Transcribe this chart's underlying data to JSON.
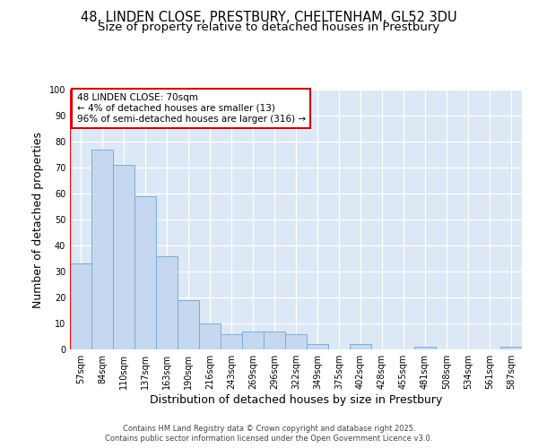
{
  "title_line1": "48, LINDEN CLOSE, PRESTBURY, CHELTENHAM, GL52 3DU",
  "title_line2": "Size of property relative to detached houses in Prestbury",
  "xlabel": "Distribution of detached houses by size in Prestbury",
  "ylabel": "Number of detached properties",
  "bar_labels": [
    "57sqm",
    "84sqm",
    "110sqm",
    "137sqm",
    "163sqm",
    "190sqm",
    "216sqm",
    "243sqm",
    "269sqm",
    "296sqm",
    "322sqm",
    "349sqm",
    "375sqm",
    "402sqm",
    "428sqm",
    "455sqm",
    "481sqm",
    "508sqm",
    "534sqm",
    "561sqm",
    "587sqm"
  ],
  "bar_values": [
    33,
    77,
    71,
    59,
    36,
    19,
    10,
    6,
    7,
    7,
    6,
    2,
    0,
    2,
    0,
    0,
    1,
    0,
    0,
    0,
    1
  ],
  "bar_color": "#c5d8f0",
  "bar_edge_color": "#7aafd4",
  "bar_edge_width": 0.7,
  "background_color": "#dce8f5",
  "grid_color": "#ffffff",
  "annotation_text": "48 LINDEN CLOSE: 70sqm\n← 4% of detached houses are smaller (13)\n96% of semi-detached houses are larger (316) →",
  "annotation_box_color": "#ffffff",
  "annotation_box_edge_color": "#cc0000",
  "ylim": [
    0,
    100
  ],
  "yticks": [
    0,
    10,
    20,
    30,
    40,
    50,
    60,
    70,
    80,
    90,
    100
  ],
  "footer_line1": "Contains HM Land Registry data © Crown copyright and database right 2025.",
  "footer_line2": "Contains public sector information licensed under the Open Government Licence v3.0.",
  "title_fontsize": 10.5,
  "subtitle_fontsize": 9.5,
  "xlabel_fontsize": 9,
  "ylabel_fontsize": 9,
  "tick_fontsize": 7,
  "annotation_fontsize": 7.5,
  "footer_fontsize": 6
}
